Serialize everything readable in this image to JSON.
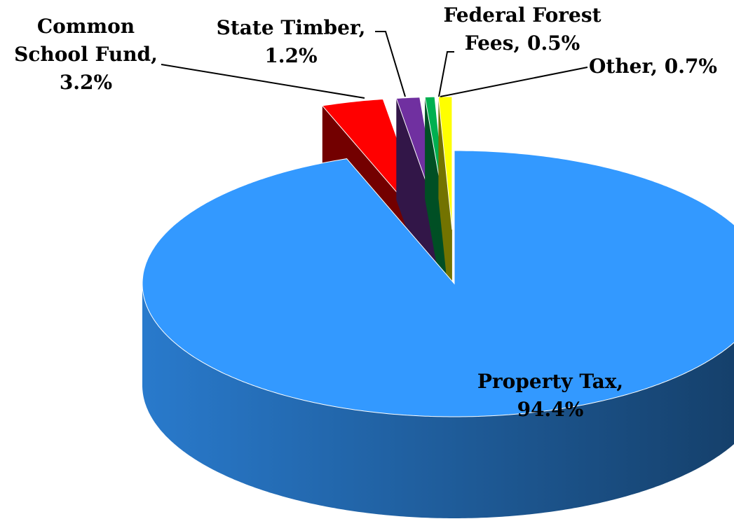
{
  "chart_data": {
    "type": "pie3d",
    "values": [
      94.4,
      3.2,
      1.2,
      0.5,
      0.7
    ],
    "value_labels": [
      "Property Tax, 94.4%",
      "Common School Fund, 3.2%",
      "State Timber, 1.2%",
      "Federal Forest Fees, 0.5%",
      "Other, 0.7%"
    ],
    "colors": [
      "#3399ff",
      "#ff0000",
      "#7030a0",
      "#00b050",
      "#ffff00"
    ]
  }
}
